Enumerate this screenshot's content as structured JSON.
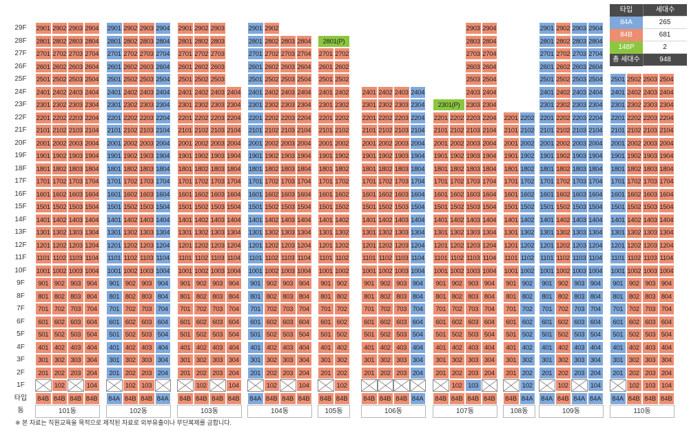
{
  "colors": {
    "84A": "#7fa8db",
    "84B": "#ec8e72",
    "148P": "#8cc63f",
    "empty": "#ffffff"
  },
  "legend": {
    "header": {
      "type": "타입",
      "count": "세대수"
    },
    "rows": [
      {
        "type": "84A",
        "count": "265"
      },
      {
        "type": "84B",
        "count": "681"
      },
      {
        "type": "148P",
        "count": "2"
      }
    ],
    "total": {
      "label": "총 세대수",
      "count": "948"
    }
  },
  "labels": {
    "type_row": "타입",
    "building_row": "동",
    "empty_mark": "cross-box-icon"
  },
  "footnote": "※ 본 자료는 직원교육을 목적으로 제작된 자료로 외부유출이나 무단복제를 금합니다.",
  "buildings": [
    {
      "name": "101동",
      "types": [
        "84B",
        "84B",
        "84B",
        "84B"
      ],
      "topFloors": [
        29,
        29,
        29,
        29
      ],
      "firstFloorEmpty": [
        1,
        3
      ],
      "penthouse": null,
      "colorOverrides": []
    },
    {
      "name": "102동",
      "types": [
        "84A",
        "84B",
        "84B",
        "84A"
      ],
      "topFloors": [
        29,
        29,
        29,
        29
      ],
      "firstFloorEmpty": [
        1,
        4
      ],
      "penthouse": null,
      "colorOverrides": []
    },
    {
      "name": "103동",
      "types": [
        "84B",
        "84B",
        "84B",
        "84B"
      ],
      "topFloors": [
        29,
        29,
        29,
        24
      ],
      "firstFloorEmpty": [
        1,
        3
      ],
      "penthouse": null,
      "colorOverrides": []
    },
    {
      "name": "104동",
      "types": [
        "84A",
        "84B",
        "84B",
        "84B"
      ],
      "topFloors": [
        29,
        29,
        28,
        28
      ],
      "firstFloorEmpty": [
        1,
        3
      ],
      "penthouse": null,
      "colorOverrides": []
    },
    {
      "name": "105동",
      "types": [
        "84B",
        "84B"
      ],
      "topFloors": [
        27,
        27
      ],
      "firstFloorEmpty": [
        1
      ],
      "penthouse": {
        "floor": 28,
        "label": "2801(P)"
      },
      "colorOverrides": []
    },
    {
      "name": "106동",
      "types": [
        "84B",
        "84B",
        "84B",
        "84A"
      ],
      "topFloors": [
        24,
        24,
        24,
        24
      ],
      "firstFloorEmpty": [
        1,
        2,
        3,
        4
      ],
      "penthouse": null,
      "colorOverrides": []
    },
    {
      "name": "107동",
      "types": [
        "84B",
        "84B",
        "84B",
        "84B"
      ],
      "topFloors": [
        22,
        22,
        29,
        29
      ],
      "firstFloorEmpty": [
        1,
        4
      ],
      "penthouse": {
        "floor": 23,
        "label": "2301(P)"
      },
      "colorOverrides": [
        {
          "col": 3,
          "floor": 1,
          "type": "84A"
        }
      ]
    },
    {
      "name": "108동",
      "types": [
        "84B",
        "84A"
      ],
      "topFloors": [
        22,
        22
      ],
      "firstFloorEmpty": [
        1
      ],
      "penthouse": null,
      "colorOverrides": []
    },
    {
      "name": "109동",
      "types": [
        "84A",
        "84B",
        "84A",
        "84A"
      ],
      "topFloors": [
        29,
        29,
        29,
        29
      ],
      "firstFloorEmpty": [
        1,
        3
      ],
      "penthouse": null,
      "colorOverrides": []
    },
    {
      "name": "110동",
      "types": [
        "84A",
        "84B",
        "84B",
        "84B"
      ],
      "topFloors": [
        25,
        25,
        25,
        25
      ],
      "firstFloorEmpty": [
        1
      ],
      "penthouse": null,
      "colorOverrides": []
    }
  ]
}
